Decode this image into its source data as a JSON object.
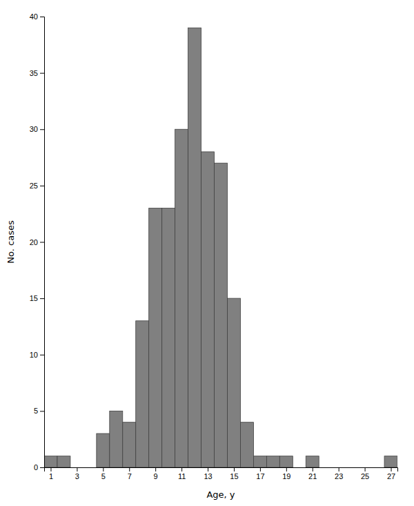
{
  "chart_data": {
    "type": "bar",
    "x": [
      1,
      2,
      3,
      4,
      5,
      6,
      7,
      8,
      9,
      10,
      11,
      12,
      13,
      14,
      15,
      16,
      17,
      18,
      19,
      20,
      21,
      22,
      23,
      24,
      25,
      26,
      27
    ],
    "values": [
      1,
      1,
      0,
      0,
      3,
      5,
      4,
      13,
      23,
      23,
      30,
      39,
      28,
      27,
      15,
      4,
      1,
      1,
      1,
      0,
      1,
      0,
      0,
      0,
      0,
      0,
      1
    ],
    "color": "#808080",
    "xlabel": "Age, y",
    "ylabel": "No. cases",
    "xlim": [
      0.5,
      27.5
    ],
    "ylim": [
      0,
      40
    ],
    "xticks": [
      1,
      3,
      5,
      7,
      9,
      11,
      13,
      15,
      17,
      19,
      21,
      23,
      25,
      27
    ],
    "yticks": [
      0,
      5,
      10,
      15,
      20,
      25,
      30,
      35,
      40
    ]
  }
}
